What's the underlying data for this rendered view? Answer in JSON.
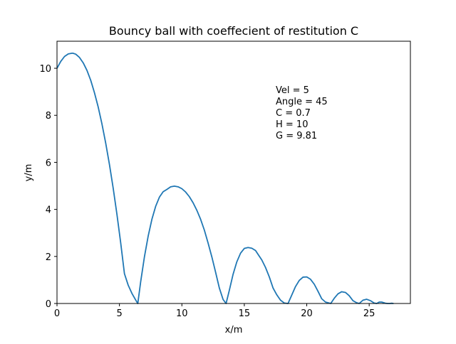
{
  "chart_data": {
    "type": "line",
    "title": "Bouncy ball with coeffecient of restitution C",
    "xlabel": "x/m",
    "ylabel": "y/m",
    "xlim": [
      0,
      28.3
    ],
    "ylim": [
      0,
      11.15
    ],
    "xticks": [
      0,
      5,
      10,
      15,
      20,
      25
    ],
    "yticks": [
      0,
      2,
      4,
      6,
      8,
      10
    ],
    "grid": false,
    "line_color": "#1f77b4",
    "annotations": [
      "Vel = 5",
      "Angle = 45",
      "C = 0.7",
      "H = 10",
      "G = 9.81"
    ],
    "series": [
      {
        "x": [
          0,
          0.3,
          0.6,
          0.9,
          1.2,
          1.27,
          1.5,
          1.8,
          2.1,
          2.4,
          2.7,
          3.0,
          3.3,
          3.6,
          3.9,
          4.2,
          4.5,
          4.8,
          5.1,
          5.4,
          5.7,
          6.0,
          6.3,
          6.47,
          6.7,
          7.0,
          7.3,
          7.6,
          7.9,
          8.2,
          8.5,
          8.8,
          9.1,
          9.4,
          9.7,
          10.0,
          10.3,
          10.6,
          10.9,
          11.2,
          11.5,
          11.8,
          12.1,
          12.4,
          12.7,
          13.0,
          13.3,
          13.54,
          13.8,
          14.1,
          14.4,
          14.7,
          15.0,
          15.3,
          15.6,
          15.9,
          16.1,
          16.4,
          16.7,
          17.0,
          17.3,
          17.6,
          17.9,
          18.2,
          18.5,
          18.8,
          19.1,
          19.4,
          19.7,
          20.0,
          20.3,
          20.6,
          20.9,
          21.2,
          21.5,
          21.92,
          22.2,
          22.5,
          22.8,
          23.1,
          23.4,
          23.7,
          24.0,
          24.2,
          24.5,
          24.8,
          25.1,
          25.4,
          25.6,
          25.8,
          26.0,
          26.3,
          26.5,
          26.65,
          26.8,
          26.95
        ],
        "y": [
          10.0,
          10.29,
          10.5,
          10.61,
          10.64,
          10.64,
          10.6,
          10.46,
          10.23,
          9.91,
          9.49,
          8.96,
          8.35,
          7.63,
          6.82,
          5.91,
          4.9,
          3.79,
          2.58,
          1.27,
          0.78,
          0.43,
          0.15,
          0.0,
          0.92,
          1.98,
          2.86,
          3.58,
          4.13,
          4.52,
          4.75,
          4.85,
          4.96,
          4.99,
          4.96,
          4.88,
          4.74,
          4.54,
          4.28,
          3.96,
          3.58,
          3.12,
          2.57,
          1.98,
          1.33,
          0.66,
          0.17,
          0.0,
          0.56,
          1.24,
          1.77,
          2.14,
          2.34,
          2.38,
          2.35,
          2.25,
          2.09,
          1.85,
          1.53,
          1.13,
          0.66,
          0.37,
          0.14,
          0.02,
          0.0,
          0.36,
          0.72,
          0.98,
          1.12,
          1.13,
          1.03,
          0.82,
          0.52,
          0.2,
          0.06,
          0.0,
          0.22,
          0.41,
          0.5,
          0.47,
          0.33,
          0.12,
          0.03,
          0.0,
          0.14,
          0.18,
          0.12,
          0.02,
          0.0,
          0.06,
          0.06,
          0.01,
          0.0,
          0.0,
          0.01,
          0.0
        ]
      }
    ]
  }
}
